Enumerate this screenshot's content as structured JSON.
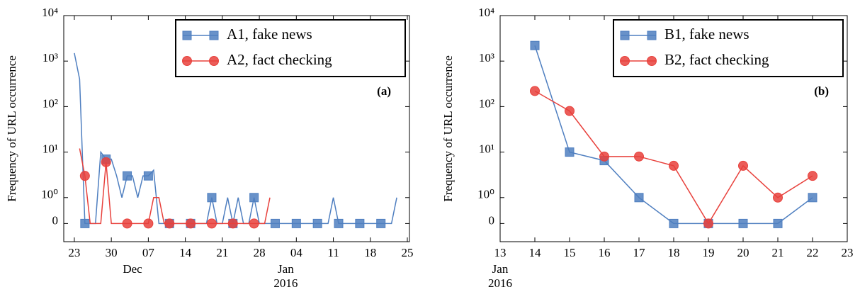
{
  "chart_data": [
    {
      "type": "line",
      "annotation": "(a)",
      "ylabel": "Frequency of URL occurrence",
      "yscale": "symlog",
      "linthresh": 1,
      "ylim": [
        -0.7,
        10000
      ],
      "yticks": [
        0,
        {
          "value": 1,
          "label": "10⁰"
        },
        {
          "value": 10,
          "label": "10¹"
        },
        {
          "value": 100,
          "label": "10²"
        },
        {
          "value": 1000,
          "label": "10³"
        },
        {
          "value": 10000,
          "label": "10⁴"
        }
      ],
      "xlim": [
        -2,
        63.4
      ],
      "xticks": [
        {
          "value": 0,
          "label": "23"
        },
        {
          "value": 7,
          "label": "30"
        },
        {
          "value": 14,
          "label": "07"
        },
        {
          "value": 21,
          "label": "14"
        },
        {
          "value": 28,
          "label": "21"
        },
        {
          "value": 35,
          "label": "28"
        },
        {
          "value": 42,
          "label": "04"
        },
        {
          "value": 49,
          "label": "11"
        },
        {
          "value": 56,
          "label": "18"
        },
        {
          "value": 63,
          "label": "25"
        }
      ],
      "month_labels": [
        {
          "value": 11,
          "label": "Dec"
        },
        {
          "value": 40,
          "label": "Jan"
        }
      ],
      "year_label": {
        "value": 40,
        "label": "2016"
      },
      "legend": "upper right",
      "markevery": [
        2,
        4
      ],
      "x": [
        0,
        1,
        2,
        3,
        4,
        5,
        6,
        7,
        8,
        9,
        10,
        11,
        12,
        13,
        14,
        15,
        16,
        17,
        18,
        19,
        20,
        21,
        22,
        23,
        24,
        25,
        26,
        27,
        28,
        29,
        30,
        31,
        32,
        33,
        34,
        35,
        36,
        37,
        38,
        39,
        40,
        41,
        42,
        43,
        44,
        45,
        46,
        47,
        48,
        49,
        50,
        51,
        52,
        53,
        54,
        55,
        56,
        57,
        58,
        59,
        60,
        61
      ],
      "series": [
        {
          "name": "A1, fake news",
          "color": "#4f7fc0",
          "marker": "square",
          "values": [
            1500,
            400,
            0,
            0,
            0,
            10,
            7,
            7,
            3,
            1,
            3,
            3,
            1,
            3,
            3,
            4,
            0,
            0,
            0,
            0,
            0,
            0,
            0,
            0,
            0,
            0,
            1,
            0,
            0,
            1,
            0,
            1,
            0,
            0,
            1,
            0,
            0,
            0,
            0,
            0,
            0,
            0,
            0,
            0,
            0,
            0,
            0,
            0,
            0,
            1,
            0,
            0,
            0,
            0,
            0,
            0,
            0,
            0,
            0,
            0,
            0,
            1
          ]
        },
        {
          "name": "A2, fact checking",
          "color": "#e8413c",
          "marker": "circle",
          "values": [
            null,
            12,
            3,
            0,
            0,
            0,
            6,
            0,
            0,
            0,
            0,
            0,
            0,
            0,
            0,
            1,
            1,
            0,
            0,
            0,
            0,
            0,
            0,
            0,
            0,
            0,
            0,
            0,
            0,
            0,
            0,
            0,
            0,
            0,
            0,
            0,
            0,
            1,
            null,
            null,
            null,
            null,
            null,
            null,
            null,
            null,
            null,
            null,
            null,
            null,
            null,
            null,
            null,
            null,
            null,
            null,
            null,
            null,
            null,
            null,
            null,
            null
          ]
        }
      ]
    },
    {
      "type": "line",
      "annotation": "(b)",
      "ylabel": "Frequency of URL occurrence",
      "yscale": "symlog",
      "linthresh": 1,
      "ylim": [
        -0.7,
        10000
      ],
      "yticks": [
        0,
        {
          "value": 1,
          "label": "10⁰"
        },
        {
          "value": 10,
          "label": "10¹"
        },
        {
          "value": 100,
          "label": "10²"
        },
        {
          "value": 1000,
          "label": "10³"
        },
        {
          "value": 10000,
          "label": "10⁴"
        }
      ],
      "xlim": [
        13,
        23
      ],
      "xticks": [
        13,
        14,
        15,
        16,
        17,
        18,
        19,
        20,
        21,
        22,
        23
      ],
      "month_labels": [
        {
          "value": 13,
          "label": "Jan"
        }
      ],
      "year_label": {
        "value": 13,
        "label": "2016"
      },
      "legend": "upper right",
      "markevery": [
        0,
        1
      ],
      "x": [
        14,
        15,
        16,
        17,
        18,
        19,
        20,
        21,
        22
      ],
      "series": [
        {
          "name": "B1, fake news",
          "color": "#4f7fc0",
          "marker": "square",
          "values": [
            2200,
            10,
            6.5,
            1,
            0,
            0,
            0,
            0,
            1
          ]
        },
        {
          "name": "B2, fact checking",
          "color": "#e8413c",
          "marker": "circle",
          "values": [
            220,
            80,
            8,
            8,
            5,
            0,
            5,
            1,
            3
          ]
        }
      ]
    }
  ]
}
